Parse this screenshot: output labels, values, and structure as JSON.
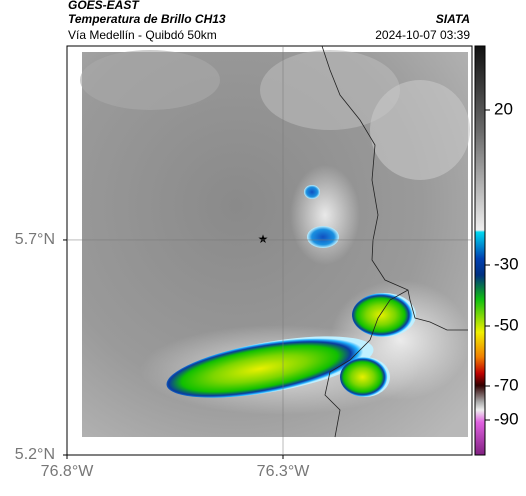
{
  "header": {
    "title": "GOES-EAST",
    "subtitle": "Temperatura de Brillo CH13",
    "location": "Vía Medellín - Quibdó 50km",
    "source": "SIATA",
    "timestamp": "2024-10-07 03:39"
  },
  "map": {
    "xlim": [
      -76.8,
      -75.8625
    ],
    "ylim": [
      5.2,
      6.151
    ],
    "xticks": [
      {
        "value": -76.8,
        "label": "76.8°W"
      },
      {
        "value": -76.3,
        "label": "76.3°W"
      }
    ],
    "yticks": [
      {
        "value": 5.2,
        "label": "5.2°N"
      },
      {
        "value": 5.7,
        "label": "5.7°N"
      }
    ],
    "grid": true
  },
  "colorbar": {
    "ticks": [
      20,
      -30,
      -50,
      -70,
      -90
    ]
  }
}
